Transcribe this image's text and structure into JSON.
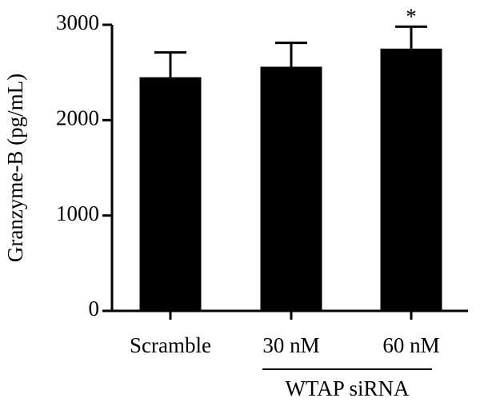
{
  "chart_data": {
    "type": "bar",
    "y_label": "Granzyme-B (pg/mL)",
    "categories": [
      "Scramble",
      "30 nM",
      "60 nM"
    ],
    "values": [
      2450,
      2560,
      2750
    ],
    "errors": [
      260,
      250,
      230
    ],
    "color": "#000000",
    "ylim": [
      0,
      3000
    ],
    "yticks": [
      0,
      1000,
      2000,
      3000
    ],
    "annotations": [
      {
        "text": "*",
        "category": "60 nM"
      }
    ],
    "group_label": {
      "text": "WTAP siRNA",
      "categories": [
        "30 nM",
        "60 nM"
      ]
    }
  }
}
